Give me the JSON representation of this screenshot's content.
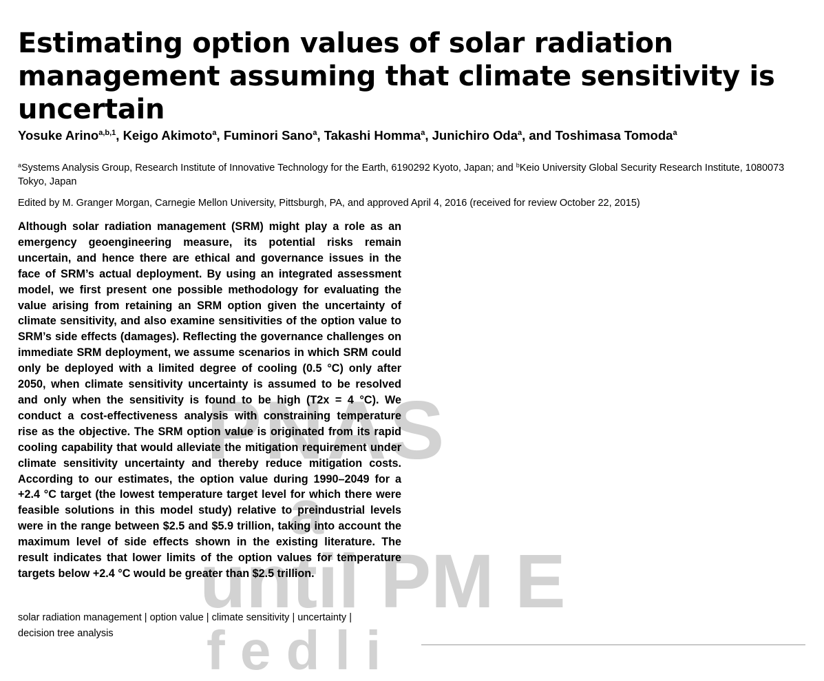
{
  "title": "Estimating option values of solar radiation management assuming that climate sensitivity is uncertain",
  "authors": [
    {
      "name": "Yosuke Arino",
      "sup": "a,b,1"
    },
    {
      "name": "Keigo Akimoto",
      "sup": "a"
    },
    {
      "name": "Fuminori Sano",
      "sup": "a"
    },
    {
      "name": "Takashi Homma",
      "sup": "a"
    },
    {
      "name": "Junichiro Oda",
      "sup": "a"
    },
    {
      "name": "Toshimasa Tomoda",
      "sup": "a"
    }
  ],
  "author_sep": ", ",
  "author_last_sep": ", and ",
  "affiliations": {
    "a_mark": "a",
    "a_text": "Systems Analysis Group, Research Institute of Innovative Technology for the Earth, 6190292 Kyoto, Japan; and ",
    "b_mark": "b",
    "b_text": "Keio University Global Security Research Institute, 1080073 Tokyo, Japan"
  },
  "edited_by": "Edited by M. Granger Morgan, Carnegie Mellon University, Pittsburgh, PA, and approved April 4, 2016 (received for review October 22, 2015)",
  "abstract": "Although solar radiation management (SRM) might play a role as an emergency geoengineering measure, its potential risks remain uncertain, and hence there are ethical and governance issues in the face of SRM’s actual deployment. By using an integrated assessment model, we first present one possible methodology for evaluating the value arising from retaining an SRM option given the uncer­tainty of climate sensitivity, and also examine sensitivities of the option value to SRM’s side effects (damages). Reflecting the gover­nance challenges on immediate SRM deployment, we assume sce­narios in which SRM could only be deployed with a limited degree of cooling (0.5 °C) only after 2050, when climate sensitivity uncer­tainty is assumed to be resolved and only when the sensitivity is found to be high (T2x = 4 °C). We conduct a cost-effectiveness analysis with constraining temperature rise as the objective. The SRM option value is originated from its rapid cooling capability that would alleviate the mitigation requirement under climate sensitivity uncertainty and thereby reduce mitigation costs. According to our estimates, the option value during 1990–2049 for a +2.4 °C target (the lowest temperature target level for which there were feasible solutions in this model study) relative to preindustrial levels were in the range between $2.5 and $5.9 trillion, taking into account the maximum level of side effects shown in the existing literature. The result indicates that lower limits of the option values for tempera­ture targets below +2.4 °C would be greater than $2.5 trillion.",
  "keywords": [
    "solar radiation management",
    "option value",
    "climate sensitivity",
    "uncertainty",
    "decision tree analysis"
  ],
  "keyword_sep": " | ",
  "watermark": {
    "line1": "PNAS",
    "line2": "a",
    "line3": "until PM E",
    "line4": "f  e  d  l  i"
  }
}
